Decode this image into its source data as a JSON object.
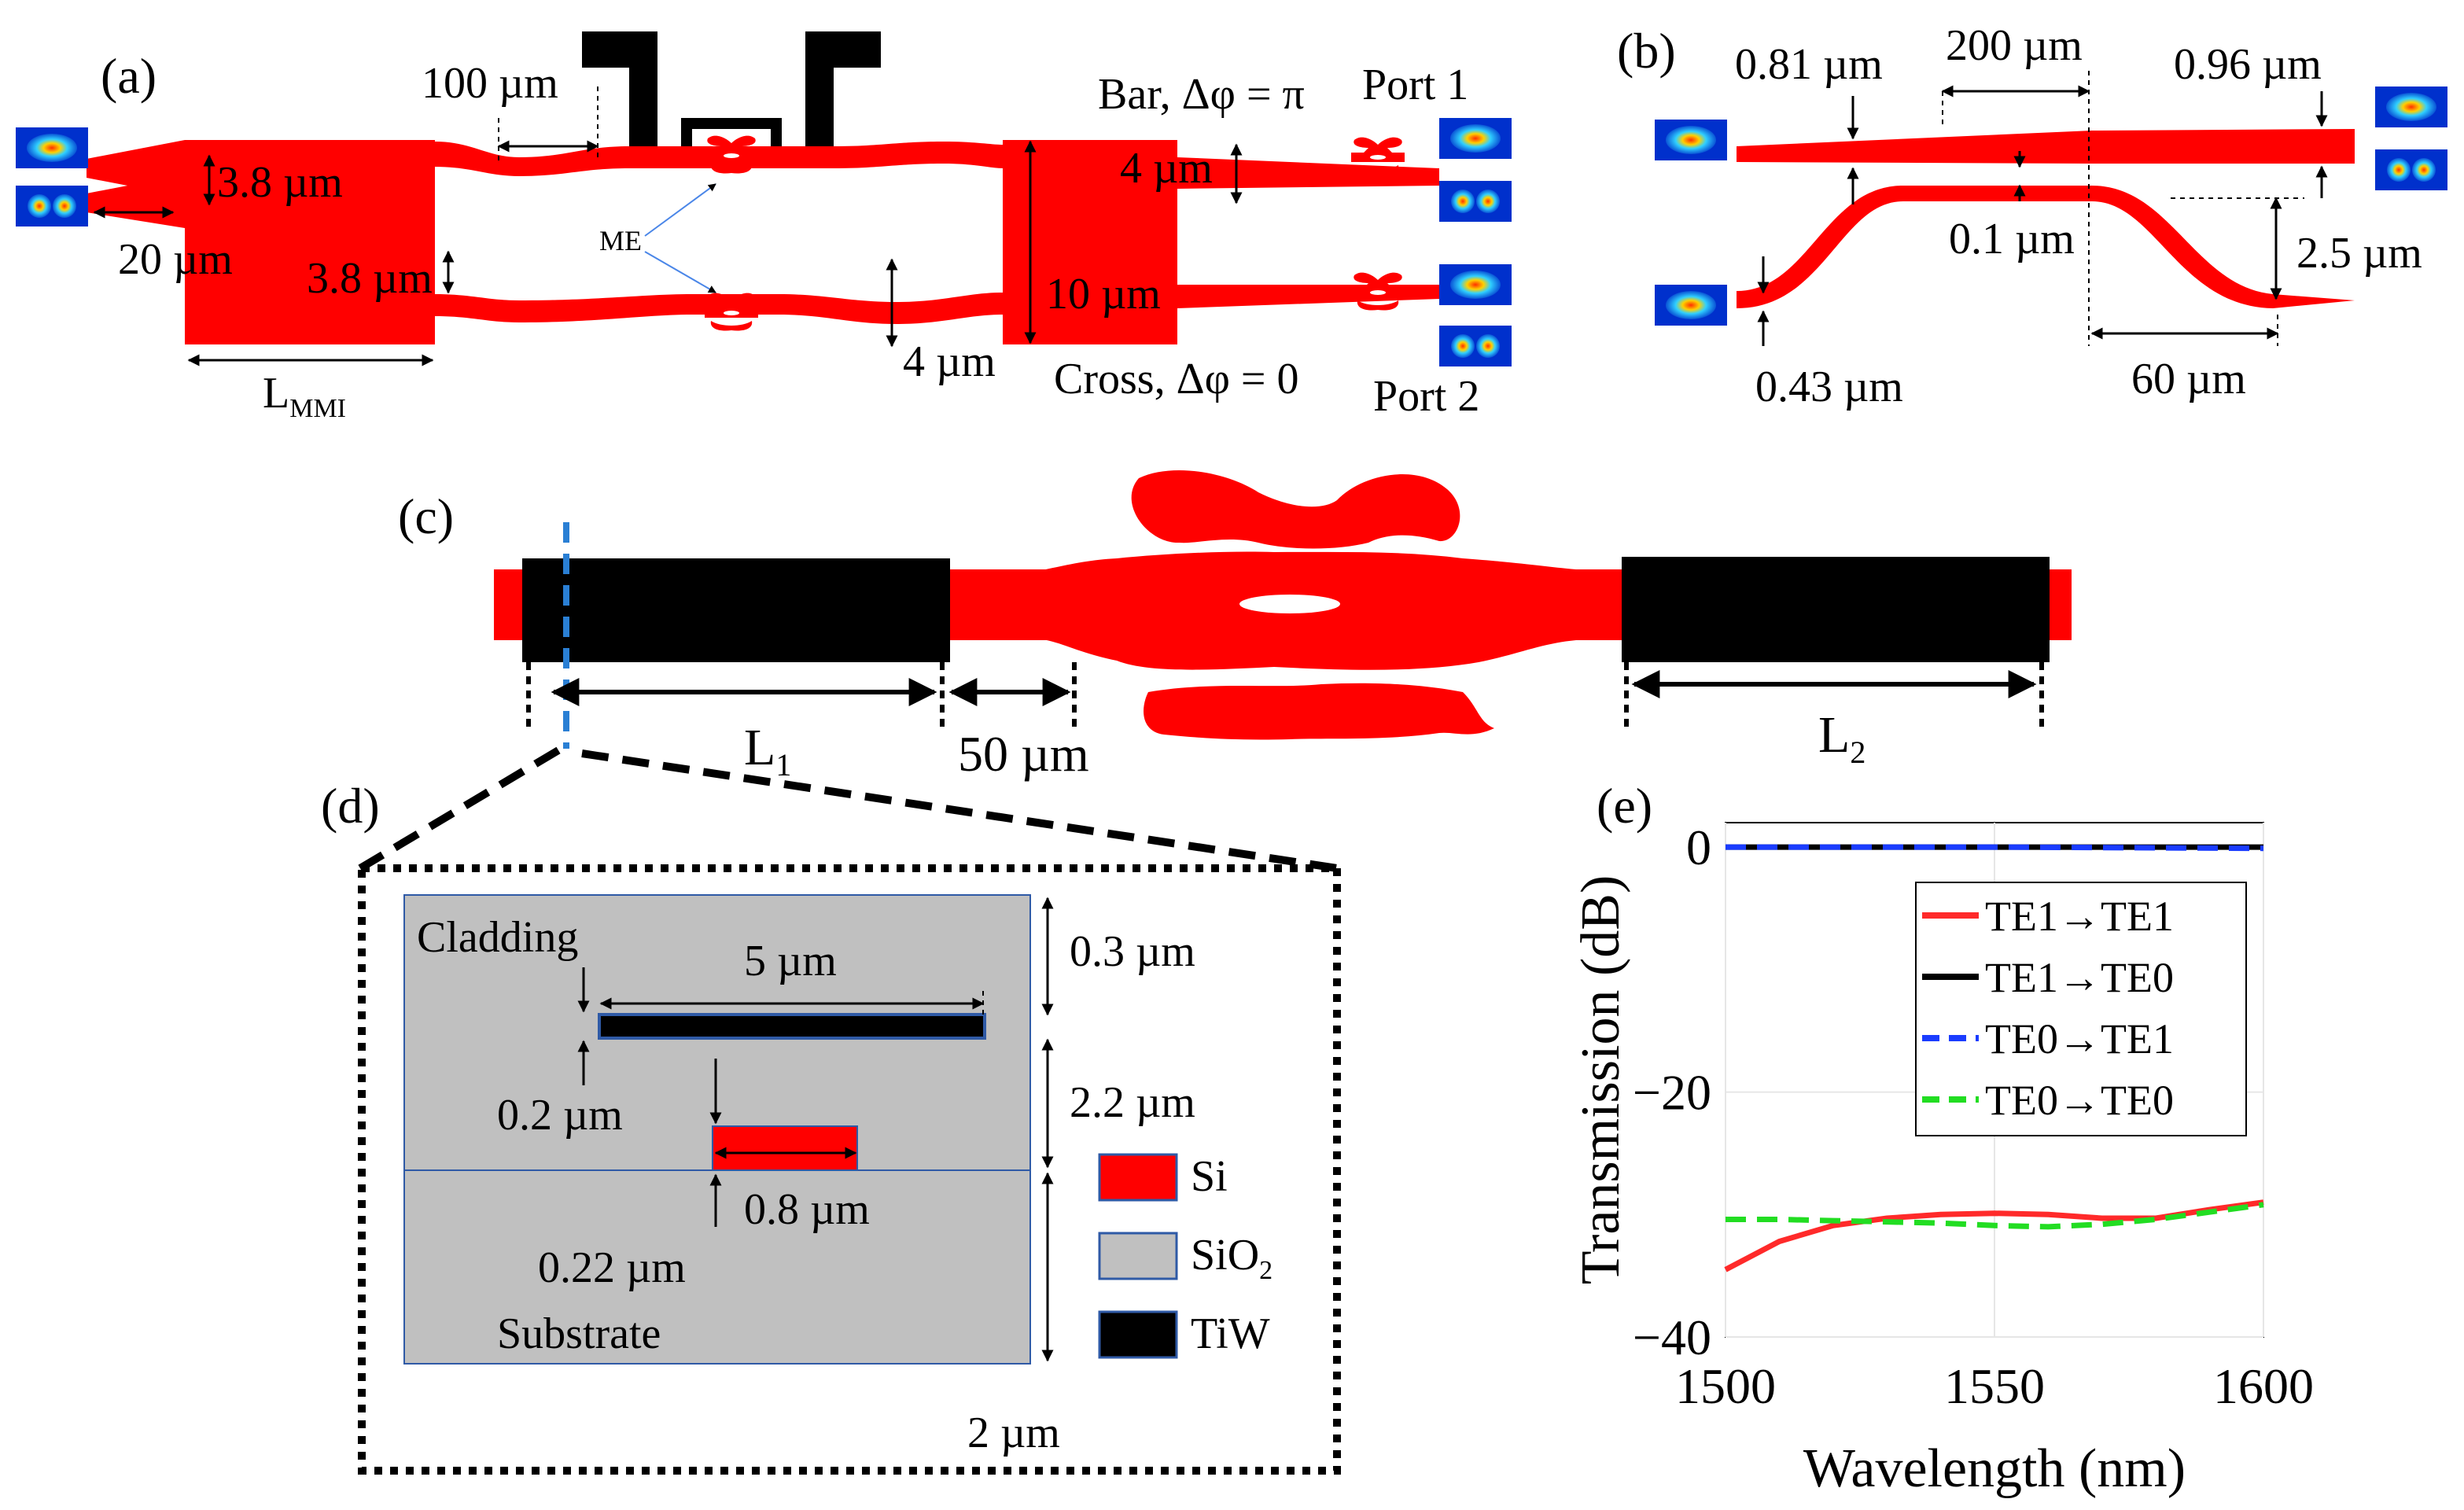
{
  "panels": {
    "a": "(a)",
    "b": "(b)",
    "c": "(c)",
    "d": "(d)",
    "e": "(e)"
  },
  "panel_a": {
    "dim_100": "100 µm",
    "dim_38_top": "3.8 µm",
    "dim_20": "20 µm",
    "dim_38_bot": "3.8 µm",
    "lmmi_main": "L",
    "lmmi_sub": "MMI",
    "me": "ME",
    "bar": "Bar, Δφ = π",
    "port1": "Port 1",
    "dim_4_top": "4 µm",
    "dim_10": "10 µm",
    "dim_4_bot": "4 µm",
    "cross": "Cross, Δφ = 0",
    "port2": "Port 2"
  },
  "panel_b": {
    "dim_081": "0.81 µm",
    "dim_200": "200 µm",
    "dim_096": "0.96 µm",
    "dim_01": "0.1 µm",
    "dim_25": "2.5 µm",
    "dim_043": "0.43 µm",
    "dim_60": "60 µm"
  },
  "panel_c": {
    "l1_main": "L",
    "l1_sub": "1",
    "dim_50": "50 µm",
    "l2_main": "L",
    "l2_sub": "2"
  },
  "panel_d": {
    "cladding": "Cladding",
    "dim_5": "5 µm",
    "dim_03": "0.3 µm",
    "dim_02": "0.2 µm",
    "dim_22": "2.2 µm",
    "dim_08": "0.8 µm",
    "dim_022": "0.22 µm",
    "substrate": "Substrate",
    "dim_2": "2 µm",
    "legend": [
      {
        "label": "Si",
        "color": "#ff0000"
      },
      {
        "label": "SiO",
        "sub": "2",
        "color": "#c0c0c0"
      },
      {
        "label": "TiW",
        "color": "#000000"
      }
    ]
  },
  "chart_data": {
    "type": "line",
    "title": "",
    "xlabel": "Wavelength (nm)",
    "ylabel": "Transmission (dB)",
    "xlim": [
      1500,
      1600
    ],
    "ylim": [
      -40,
      2
    ],
    "xticks": [
      1500,
      1550,
      1600
    ],
    "yticks": [
      0,
      -20,
      -40
    ],
    "ytick_labels": [
      "0",
      "−20",
      "−40"
    ],
    "legend_position": "top-right",
    "grid": true,
    "series": [
      {
        "name": "TE1→TE1",
        "color": "#ff2a2a",
        "dash": "solid",
        "x": [
          1500,
          1510,
          1520,
          1530,
          1540,
          1550,
          1560,
          1570,
          1580,
          1590,
          1600
        ],
        "y": [
          -34.5,
          -32.2,
          -30.9,
          -30.3,
          -30.0,
          -29.9,
          -30.0,
          -30.3,
          -30.3,
          -29.6,
          -29.0
        ]
      },
      {
        "name": "TE1→TE0",
        "color": "#000000",
        "dash": "solid",
        "x": [
          1500,
          1550,
          1600
        ],
        "y": [
          0,
          0,
          0
        ]
      },
      {
        "name": "TE0→TE1",
        "color": "#1a3cff",
        "dash": "dashed",
        "x": [
          1500,
          1550,
          1600
        ],
        "y": [
          0,
          0,
          -0.1
        ]
      },
      {
        "name": "TE0→TE0",
        "color": "#22dd22",
        "dash": "dashed",
        "x": [
          1500,
          1510,
          1520,
          1530,
          1540,
          1550,
          1560,
          1570,
          1580,
          1590,
          1600
        ],
        "y": [
          -30.4,
          -30.4,
          -30.5,
          -30.6,
          -30.7,
          -30.9,
          -31.0,
          -30.8,
          -30.4,
          -29.8,
          -29.2
        ]
      }
    ]
  }
}
